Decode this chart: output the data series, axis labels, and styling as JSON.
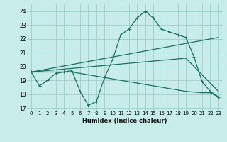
{
  "xlabel": "Humidex (Indice chaleur)",
  "bg_color": "#c8ece8",
  "grid_color": "#a0d4cc",
  "line_color": "#1a6e64",
  "xlim": [
    -0.5,
    23.5
  ],
  "ylim": [
    16.8,
    24.5
  ],
  "yticks": [
    17,
    18,
    19,
    20,
    21,
    22,
    23,
    24
  ],
  "xticks": [
    0,
    1,
    2,
    3,
    4,
    5,
    6,
    7,
    8,
    9,
    10,
    11,
    12,
    13,
    14,
    15,
    16,
    17,
    18,
    19,
    20,
    21,
    22,
    23
  ],
  "line1_x": [
    0,
    1,
    2,
    3,
    4,
    5,
    6,
    7,
    8,
    9,
    10,
    11,
    12,
    13,
    14,
    15,
    16,
    17,
    18,
    19,
    20,
    21,
    22,
    23
  ],
  "line1_y": [
    19.6,
    18.6,
    19.0,
    19.5,
    19.6,
    19.7,
    18.2,
    17.2,
    17.45,
    19.2,
    20.5,
    22.3,
    22.7,
    23.5,
    24.0,
    23.5,
    22.7,
    22.5,
    22.3,
    22.1,
    20.7,
    18.9,
    18.2,
    17.8
  ],
  "line2_x": [
    0,
    23
  ],
  "line2_y": [
    19.6,
    22.1
  ],
  "line3_x": [
    0,
    19,
    23
  ],
  "line3_y": [
    19.6,
    20.6,
    18.2
  ],
  "line4_x": [
    0,
    5,
    9,
    19,
    21,
    22,
    23
  ],
  "line4_y": [
    19.6,
    19.6,
    19.2,
    18.2,
    18.1,
    18.1,
    17.8
  ]
}
